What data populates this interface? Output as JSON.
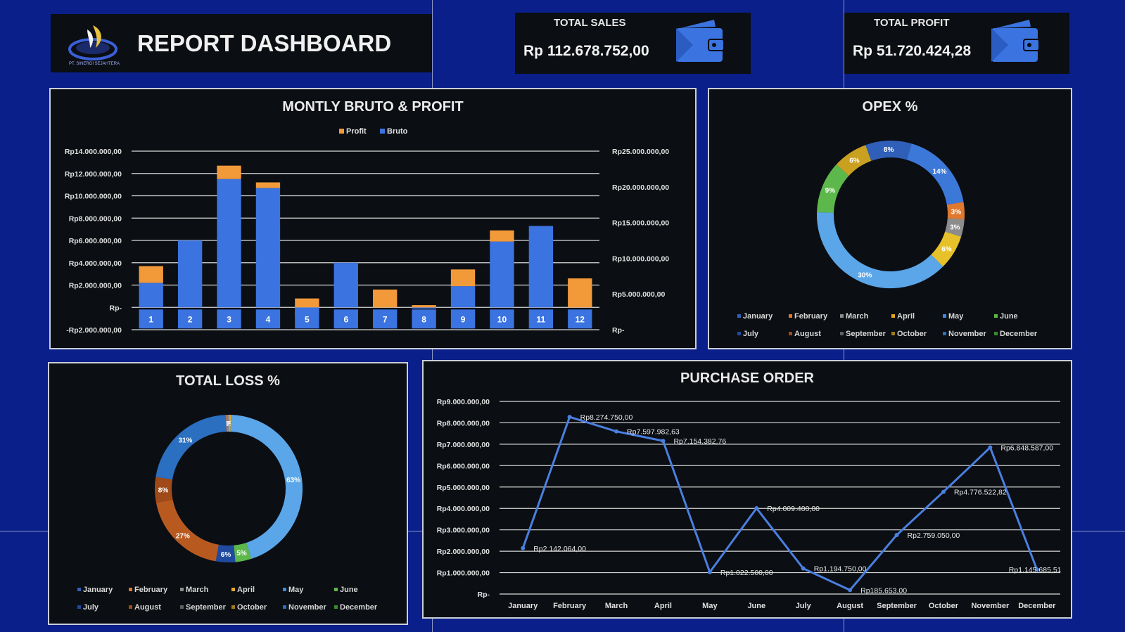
{
  "header": {
    "title": "REPORT DASHBOARD",
    "logo_text": "PT. SINERGI SEJAHTERA"
  },
  "kpis": {
    "total_sales_label": "TOTAL SALES",
    "total_sales_value": "Rp 112.678.752,00",
    "total_profit_label": "TOTAL PROFIT",
    "total_profit_value": "Rp 51.720.424,28"
  },
  "colors": {
    "background": "#0a1f8a",
    "panel": "#0b0e12",
    "bruto": "#3b73e0",
    "profit": "#f29a3a",
    "line": "#4a7fe0"
  },
  "months": [
    "January",
    "February",
    "March",
    "April",
    "May",
    "June",
    "July",
    "August",
    "September",
    "October",
    "November",
    "December"
  ],
  "month_colors": [
    "#2f5fb8",
    "#e0782d",
    "#8c8c8c",
    "#e6a826",
    "#3d8be0",
    "#5cb84a",
    "#1f4aa0",
    "#a04a1a",
    "#606060",
    "#a07a1a",
    "#2a6fc0",
    "#3a8a30"
  ],
  "chart_data": [
    {
      "id": "bruto_profit",
      "type": "bar",
      "title": "MONTLY BRUTO & PROFIT",
      "categories": [
        "1",
        "2",
        "3",
        "4",
        "5",
        "6",
        "7",
        "8",
        "9",
        "10",
        "11",
        "12"
      ],
      "series": [
        {
          "name": "Bruto",
          "axis": "left",
          "values": [
            2200000,
            6000000,
            11500000,
            10700000,
            -900000,
            4000000,
            0,
            -100000,
            1900000,
            5900000,
            7300000,
            0
          ]
        },
        {
          "name": "Profit",
          "axis": "left",
          "values": [
            1500000,
            0,
            1200000,
            500000,
            800000,
            0,
            1600000,
            200000,
            1500000,
            1000000,
            0,
            2600000
          ]
        }
      ],
      "left_axis_ticks": [
        "-Rp2.000.000,00",
        "Rp-",
        "Rp2.000.000,00",
        "Rp4.000.000,00",
        "Rp6.000.000,00",
        "Rp8.000.000,00",
        "Rp10.000.000,00",
        "Rp12.000.000,00",
        "Rp14.000.000,00"
      ],
      "left_axis_values": [
        -2000000,
        0,
        2000000,
        4000000,
        6000000,
        8000000,
        10000000,
        12000000,
        14000000
      ],
      "right_axis_ticks": [
        "Rp-",
        "Rp5.000.000,00",
        "Rp10.000.000,00",
        "Rp15.000.000,00",
        "Rp20.000.000,00",
        "Rp25.000.000,00"
      ],
      "ylim": [
        -2000000,
        14000000
      ],
      "legend": "top-center",
      "grid": true
    },
    {
      "id": "opex",
      "type": "pie",
      "title": "OPEX %",
      "labels": [
        "January",
        "February",
        "March",
        "April",
        "May",
        "June",
        "July",
        "August",
        "September",
        "October",
        "November",
        "December"
      ],
      "values": [
        0,
        0,
        0,
        0,
        8,
        14,
        3,
        3,
        6,
        30,
        9,
        6
      ],
      "label_values": [
        "",
        "",
        "",
        "",
        "8%",
        "14%",
        "3%",
        "3%",
        "6%",
        "30%",
        "9%",
        "6%"
      ],
      "slice_colors": [
        "#2f5fb8",
        "#e0782d",
        "#8c8c8c",
        "#e6a826",
        "#2f5fb8",
        "#3b78d8",
        "#e0782d",
        "#8c8c8c",
        "#e6c12a",
        "#5aa6e8",
        "#5cb84a",
        "#c9a020"
      ],
      "legend": "bottom"
    },
    {
      "id": "total_loss",
      "type": "pie",
      "title": "TOTAL LOSS %",
      "labels": [
        "January",
        "February",
        "March",
        "April",
        "May",
        "June",
        "July",
        "August",
        "September",
        "October",
        "November",
        "December"
      ],
      "values": [
        0,
        0.5,
        0.5,
        0.5,
        63,
        5,
        6,
        27,
        8,
        31,
        0,
        0
      ],
      "label_values": [
        "",
        "",
        "0%",
        "0%",
        "63%",
        "5%",
        "6%",
        "27%",
        "8%",
        "31%",
        "",
        ""
      ],
      "slice_colors": [
        "#2f5fb8",
        "#e0782d",
        "#8c8c8c",
        "#e6a826",
        "#5aa6e8",
        "#5cb84a",
        "#1f4aa0",
        "#b85a20",
        "#a04a1a",
        "#2a6fc0",
        "#3d8be0",
        "#3a8a30"
      ],
      "legend": "bottom"
    },
    {
      "id": "purchase_order",
      "type": "line",
      "title": "PURCHASE ORDER",
      "categories": [
        "January",
        "February",
        "March",
        "April",
        "May",
        "June",
        "July",
        "August",
        "September",
        "October",
        "November",
        "December"
      ],
      "values": [
        2142064,
        8274750,
        7597982.63,
        7154382.76,
        1022500,
        4009400,
        1194750,
        185653,
        2759050,
        4776522.82,
        6848587,
        1145685.51
      ],
      "data_labels": [
        "Rp2.142.064,00",
        "Rp8.274.750,00",
        "Rp7.597.982,63",
        "Rp7.154.382,76",
        "Rp1.022.500,00",
        "Rp4.009.400,00",
        "Rp1.194.750,00",
        "Rp185.653,00",
        "Rp2.759.050,00",
        "Rp4.776.522,82",
        "Rp6.848.587,00",
        "Rp1.145.685,51"
      ],
      "y_axis_ticks": [
        "Rp-",
        "Rp1.000.000,00",
        "Rp2.000.000,00",
        "Rp3.000.000,00",
        "Rp4.000.000,00",
        "Rp5.000.000,00",
        "Rp6.000.000,00",
        "Rp7.000.000,00",
        "Rp8.000.000,00",
        "Rp9.000.000,00"
      ],
      "ylim": [
        0,
        9000000
      ],
      "grid": true
    }
  ]
}
